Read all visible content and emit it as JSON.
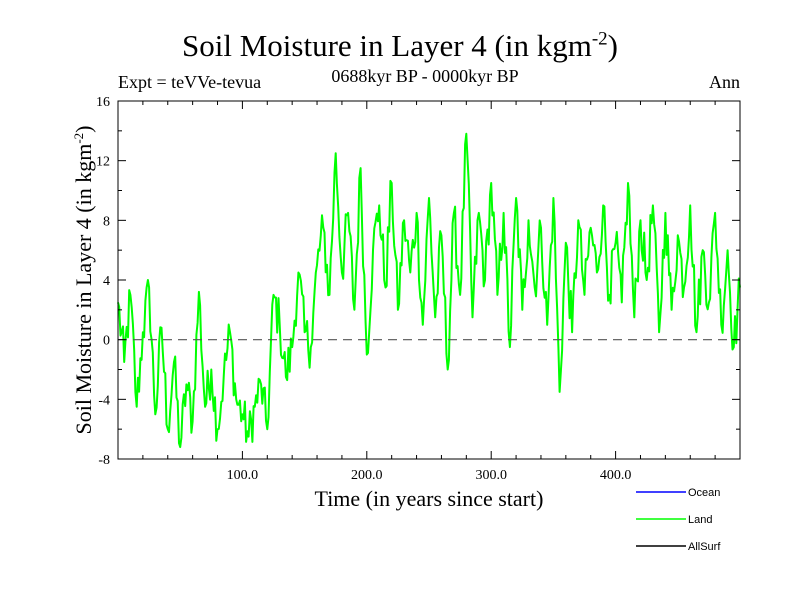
{
  "chart_data": {
    "type": "line",
    "title": "Soil Moisture in Layer 4 (in kgm",
    "title_sup": "-2",
    "title_close": ")",
    "experiment": "Expt = teVVe-tevua",
    "period": "0688kyr BP - 0000kyr BP",
    "season": "Ann",
    "xlabel": "Time (in years since start)",
    "ylabel": "Soil Moisture in Layer 4 (in kgm",
    "ylabel_sup": "-2",
    "ylabel_close": ")",
    "xlim": [
      0,
      500
    ],
    "ylim": [
      -8,
      16
    ],
    "x_ticks": [
      100,
      200,
      300,
      400
    ],
    "x_tick_labels": [
      "100.0",
      "200.0",
      "300.0",
      "400.0"
    ],
    "y_ticks": [
      -8,
      -4,
      0,
      4,
      8,
      12,
      16
    ],
    "y_tick_labels": [
      "-8",
      "-4",
      "0",
      "4",
      "8",
      "12",
      "16"
    ],
    "zero_line": "dashed",
    "grid": false,
    "legend_position": "bottom-right",
    "series": [
      {
        "name": "Ocean",
        "color": "#0000ff",
        "values": []
      },
      {
        "name": "Land",
        "color": "#00ff00",
        "x": [
          0,
          5,
          10,
          15,
          20,
          25,
          30,
          35,
          40,
          45,
          50,
          55,
          60,
          65,
          70,
          75,
          80,
          85,
          90,
          95,
          100,
          105,
          110,
          115,
          120,
          125,
          130,
          135,
          140,
          145,
          150,
          155,
          160,
          165,
          170,
          175,
          180,
          185,
          190,
          195,
          200,
          205,
          210,
          215,
          220,
          225,
          230,
          235,
          240,
          245,
          250,
          255,
          260,
          265,
          270,
          275,
          280,
          285,
          290,
          295,
          300,
          305,
          310,
          315,
          320,
          325,
          330,
          335,
          340,
          345,
          350,
          355,
          360,
          365,
          370,
          375,
          380,
          385,
          390,
          395,
          400,
          405,
          410,
          415,
          420,
          425,
          430,
          435,
          440,
          445,
          450,
          455,
          460,
          465,
          470,
          475,
          480,
          485,
          490,
          495,
          500
        ],
        "values": [
          2.5,
          -1.5,
          3.0,
          -4.5,
          0.5,
          3.5,
          -5.0,
          0.8,
          -6.0,
          -1.5,
          -7.2,
          -3.0,
          -5.5,
          3.2,
          -4.5,
          -2.0,
          -6.0,
          -2.5,
          0.5,
          -4.0,
          -5.0,
          -6.5,
          -4.5,
          -3.0,
          -6.0,
          3.0,
          1.0,
          -2.5,
          -0.5,
          4.5,
          0.5,
          -0.5,
          5.0,
          7.5,
          3.0,
          12.5,
          4.5,
          8.5,
          2.0,
          11.5,
          -1.0,
          6.0,
          9.0,
          3.5,
          10.5,
          2.0,
          8.0,
          4.5,
          8.5,
          1.0,
          9.5,
          1.5,
          7.0,
          -2.0,
          8.5,
          3.0,
          13.8,
          1.5,
          8.5,
          4.0,
          10.5,
          3.0,
          8.5,
          -0.5,
          9.5,
          2.0,
          8.0,
          3.5,
          7.5,
          1.0,
          9.5,
          -3.5,
          6.5,
          0.5,
          8.0,
          3.0,
          7.5,
          4.5,
          9.0,
          3.0,
          6.5,
          2.5,
          10.5,
          1.5,
          8.0,
          4.0,
          9.0,
          0.5,
          8.5,
          2.0,
          7.0,
          3.5,
          9.0,
          0.5,
          6.0,
          2.5,
          8.5,
          1.0,
          6.0,
          -0.5,
          3.5
        ]
      },
      {
        "name": "AllSurf",
        "color": "#000000",
        "values": []
      }
    ]
  }
}
